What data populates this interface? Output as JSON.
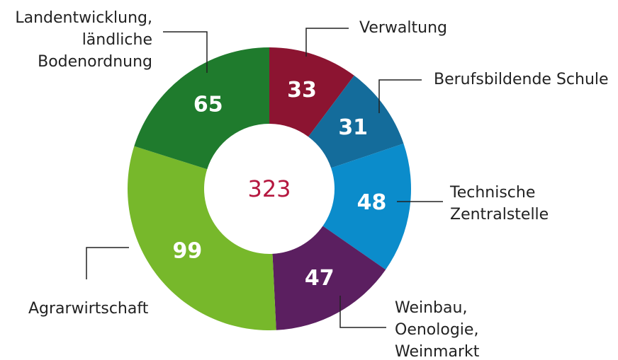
{
  "chart_data": {
    "type": "donut",
    "categories": [
      "Verwaltung",
      "Berufsbildende Schule",
      "Technische\nZentralstelle",
      "Weinbau,\nOenologie,\nWeinmarkt",
      "Agrarwirtschaft",
      "Landentwicklung,\nländliche\nBodenordnung"
    ],
    "values": [
      33,
      31,
      48,
      47,
      99,
      65
    ],
    "colors": [
      "#8c1431",
      "#146c9b",
      "#0b8ccb",
      "#5b1f60",
      "#77b82b",
      "#1f7b2d"
    ],
    "center_label": 323
  }
}
